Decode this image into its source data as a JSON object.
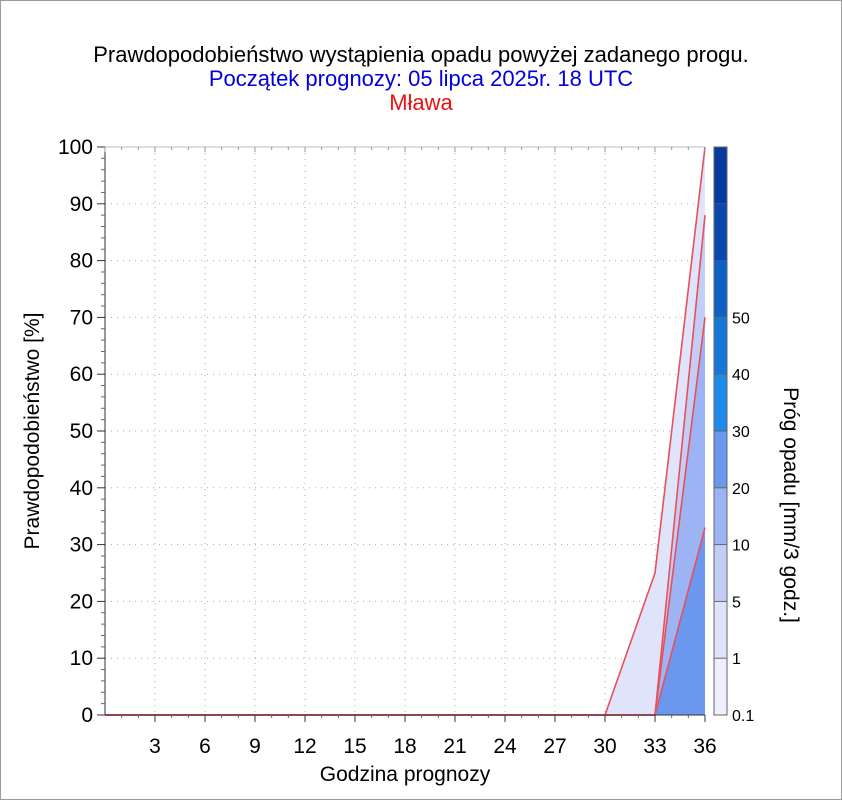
{
  "colors": {
    "title": "#000000",
    "subtitle": "#0000dd",
    "station": "#ee1111",
    "series_line": "#e8505a",
    "grid": "#aaaaaa"
  },
  "chart_data": {
    "type": "area",
    "title": "Prawdopodobieństwo wystąpienia opadu powyżej zadanego progu.",
    "subtitle": "Początek prognozy: 05 lipca 2025r. 18 UTC",
    "station": "Mława",
    "xlabel": "Godzina prognozy",
    "ylabel": "Prawdopodobieństwo [%]",
    "colorbar_label": "Próg opadu [mm/3 godz.]",
    "xlim": [
      0,
      36
    ],
    "ylim": [
      0,
      100
    ],
    "x_ticks": [
      "3",
      "6",
      "9",
      "12",
      "15",
      "18",
      "21",
      "24",
      "27",
      "30",
      "33",
      "36"
    ],
    "y_ticks": [
      "0",
      "10",
      "20",
      "30",
      "40",
      "50",
      "60",
      "70",
      "80",
      "90",
      "100"
    ],
    "grid": true,
    "x": [
      0,
      3,
      6,
      9,
      12,
      15,
      18,
      21,
      24,
      27,
      30,
      33,
      36
    ],
    "series": [
      {
        "name": "0.1",
        "color": "#dfe4fb",
        "values": [
          0,
          0,
          0,
          0,
          0,
          0,
          0,
          0,
          0,
          0,
          0,
          25,
          100
        ]
      },
      {
        "name": "1",
        "color": "#c3cef6",
        "values": [
          0,
          0,
          0,
          0,
          0,
          0,
          0,
          0,
          0,
          0,
          0,
          0,
          88
        ]
      },
      {
        "name": "5",
        "color": "#9db4f4",
        "values": [
          0,
          0,
          0,
          0,
          0,
          0,
          0,
          0,
          0,
          0,
          0,
          0,
          70
        ]
      },
      {
        "name": "10",
        "color": "#6b98ee",
        "values": [
          0,
          0,
          0,
          0,
          0,
          0,
          0,
          0,
          0,
          0,
          0,
          0,
          33
        ]
      }
    ],
    "colorbar": {
      "tick_labels": [
        "0.1",
        "1",
        "5",
        "10",
        "20",
        "30",
        "40",
        "50"
      ],
      "bands": [
        "#eef0fe",
        "#dfe4fb",
        "#c3cef6",
        "#9db4f4",
        "#6b98ee",
        "#1c8bec",
        "#1478d8",
        "#0d60c4",
        "#0a48ac",
        "#083a9e"
      ]
    }
  }
}
